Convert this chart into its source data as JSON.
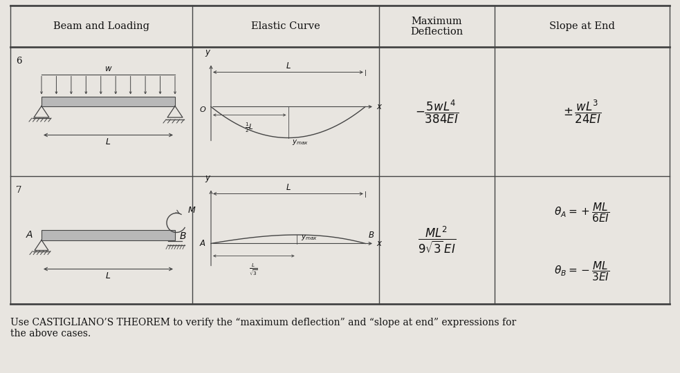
{
  "bg_color": "#e8e5e0",
  "table_bg": "#e8e5e0",
  "line_color": "#444444",
  "text_color": "#111111",
  "col_headers": [
    "Beam and Loading",
    "Elastic Curve",
    "Maximum\nDeflection",
    "Slope at End"
  ],
  "row_labels": [
    "6",
    "7"
  ],
  "footer_text": "Use CASTIGLIANO’S THEOREM to verify the “maximum deflection” and “slope at end” expressions for\nthe above cases."
}
